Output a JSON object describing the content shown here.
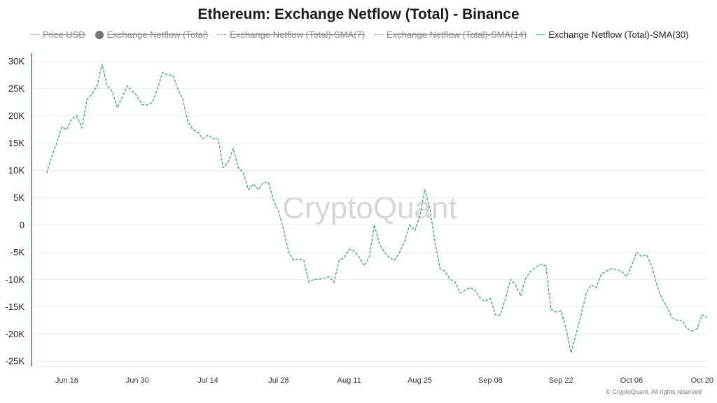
{
  "title": "Ethereum: Exchange Netflow (Total) - Binance",
  "legend": [
    {
      "label": "Price USD",
      "state": "off",
      "marker": "line"
    },
    {
      "label": "Exchange Netflow (Total)",
      "state": "off",
      "marker": "dot"
    },
    {
      "label": "Exchange Netflow (Total)-SMA(7)",
      "state": "off",
      "marker": "line"
    },
    {
      "label": "Exchange Netflow (Total)-SMA(14)",
      "state": "off",
      "marker": "line"
    },
    {
      "label": "Exchange Netflow (Total)-SMA(30)",
      "state": "on",
      "marker": "line"
    }
  ],
  "watermark": "CryptoQuant",
  "copyright": "© CryptoQuant. All rights reserved",
  "colors": {
    "series": "#2e9e72",
    "axis": "#2e9e72",
    "grid": "#ececec"
  },
  "chart_data": {
    "type": "line",
    "title": "Ethereum: Exchange Netflow (Total) - Binance",
    "ylim": [
      -26000,
      31500
    ],
    "yticks": [
      30000,
      25000,
      20000,
      15000,
      10000,
      5000,
      0,
      -5000,
      -10000,
      -15000,
      -20000,
      -25000
    ],
    "ytick_labels": [
      "30K",
      "25K",
      "20K",
      "15K",
      "10K",
      "5K",
      "0",
      "-5K",
      "-10K",
      "-15K",
      "-20K",
      "-25K"
    ],
    "xticks": [
      {
        "label": "Jun 16",
        "day": 4
      },
      {
        "label": "Jun 30",
        "day": 18
      },
      {
        "label": "Jul 14",
        "day": 32
      },
      {
        "label": "Jul 28",
        "day": 46
      },
      {
        "label": "Aug 11",
        "day": 60
      },
      {
        "label": "Aug 25",
        "day": 74
      },
      {
        "label": "Sep 08",
        "day": 88
      },
      {
        "label": "Sep 22",
        "day": 102
      },
      {
        "label": "Oct 06",
        "day": 116
      },
      {
        "label": "Oct 20",
        "day": 130
      }
    ],
    "xlim": [
      -3,
      131
    ],
    "series": [
      {
        "name": "Exchange Netflow (Total)-SMA(30)",
        "values": [
          [
            0,
            9500
          ],
          [
            1,
            12500
          ],
          [
            2,
            15000
          ],
          [
            3,
            18000
          ],
          [
            4,
            17500
          ],
          [
            5,
            19500
          ],
          [
            6,
            20000
          ],
          [
            7,
            17800
          ],
          [
            8,
            23000
          ],
          [
            9,
            24000
          ],
          [
            10,
            25500
          ],
          [
            11,
            29500
          ],
          [
            12,
            25500
          ],
          [
            13,
            24500
          ],
          [
            14,
            21500
          ],
          [
            15,
            23500
          ],
          [
            16,
            25500
          ],
          [
            17,
            24500
          ],
          [
            18,
            23500
          ],
          [
            19,
            22000
          ],
          [
            20,
            22000
          ],
          [
            21,
            22500
          ],
          [
            22,
            25000
          ],
          [
            23,
            28000
          ],
          [
            24,
            27500
          ],
          [
            25,
            27500
          ],
          [
            26,
            25000
          ],
          [
            27,
            23000
          ],
          [
            28,
            19000
          ],
          [
            29,
            17500
          ],
          [
            30,
            17000
          ],
          [
            31,
            15800
          ],
          [
            32,
            16500
          ],
          [
            33,
            15800
          ],
          [
            34,
            15800
          ],
          [
            35,
            10500
          ],
          [
            36,
            11500
          ],
          [
            37,
            14000
          ],
          [
            38,
            10500
          ],
          [
            39,
            9500
          ],
          [
            40,
            6500
          ],
          [
            41,
            7500
          ],
          [
            42,
            6500
          ],
          [
            43,
            7800
          ],
          [
            44,
            7800
          ],
          [
            45,
            4500
          ],
          [
            46,
            2500
          ],
          [
            47,
            -1000
          ],
          [
            48,
            -5000
          ],
          [
            49,
            -6500
          ],
          [
            50,
            -6200
          ],
          [
            51,
            -6500
          ],
          [
            52,
            -10500
          ],
          [
            53,
            -10000
          ],
          [
            54,
            -10000
          ],
          [
            55,
            -9800
          ],
          [
            56,
            -9500
          ],
          [
            57,
            -10500
          ],
          [
            58,
            -6500
          ],
          [
            59,
            -6000
          ],
          [
            60,
            -4500
          ],
          [
            61,
            -4800
          ],
          [
            62,
            -6000
          ],
          [
            63,
            -7500
          ],
          [
            64,
            -5800
          ],
          [
            65,
            0
          ],
          [
            66,
            -3500
          ],
          [
            67,
            -5000
          ],
          [
            68,
            -6000
          ],
          [
            69,
            -6500
          ],
          [
            70,
            -5000
          ],
          [
            71,
            -3000
          ],
          [
            72,
            0
          ],
          [
            73,
            -1000
          ],
          [
            74,
            1500
          ],
          [
            75,
            6500
          ],
          [
            76,
            3000
          ],
          [
            77,
            -3000
          ],
          [
            78,
            -8000
          ],
          [
            79,
            -8500
          ],
          [
            80,
            -10000
          ],
          [
            81,
            -10500
          ],
          [
            82,
            -12500
          ],
          [
            83,
            -12000
          ],
          [
            84,
            -11500
          ],
          [
            85,
            -12000
          ],
          [
            86,
            -13500
          ],
          [
            87,
            -14000
          ],
          [
            88,
            -13500
          ],
          [
            89,
            -16500
          ],
          [
            90,
            -16500
          ],
          [
            91,
            -13500
          ],
          [
            92,
            -10000
          ],
          [
            93,
            -11000
          ],
          [
            94,
            -13000
          ],
          [
            95,
            -9800
          ],
          [
            96,
            -8500
          ],
          [
            97,
            -7800
          ],
          [
            98,
            -7200
          ],
          [
            99,
            -7500
          ],
          [
            100,
            -15500
          ],
          [
            101,
            -16000
          ],
          [
            102,
            -15800
          ],
          [
            103,
            -19000
          ],
          [
            104,
            -23500
          ],
          [
            105,
            -20000
          ],
          [
            106,
            -16500
          ],
          [
            107,
            -12500
          ],
          [
            108,
            -11000
          ],
          [
            109,
            -11500
          ],
          [
            110,
            -9000
          ],
          [
            111,
            -8500
          ],
          [
            112,
            -8000
          ],
          [
            113,
            -8200
          ],
          [
            114,
            -8500
          ],
          [
            115,
            -9500
          ],
          [
            116,
            -7500
          ],
          [
            117,
            -5000
          ],
          [
            118,
            -5800
          ],
          [
            119,
            -5500
          ],
          [
            120,
            -7500
          ],
          [
            121,
            -11000
          ],
          [
            122,
            -13500
          ],
          [
            123,
            -15000
          ],
          [
            124,
            -17000
          ],
          [
            125,
            -17500
          ],
          [
            126,
            -17500
          ],
          [
            127,
            -19000
          ],
          [
            128,
            -19500
          ],
          [
            129,
            -19000
          ],
          [
            130,
            -16500
          ],
          [
            131,
            -17000
          ]
        ]
      }
    ]
  }
}
